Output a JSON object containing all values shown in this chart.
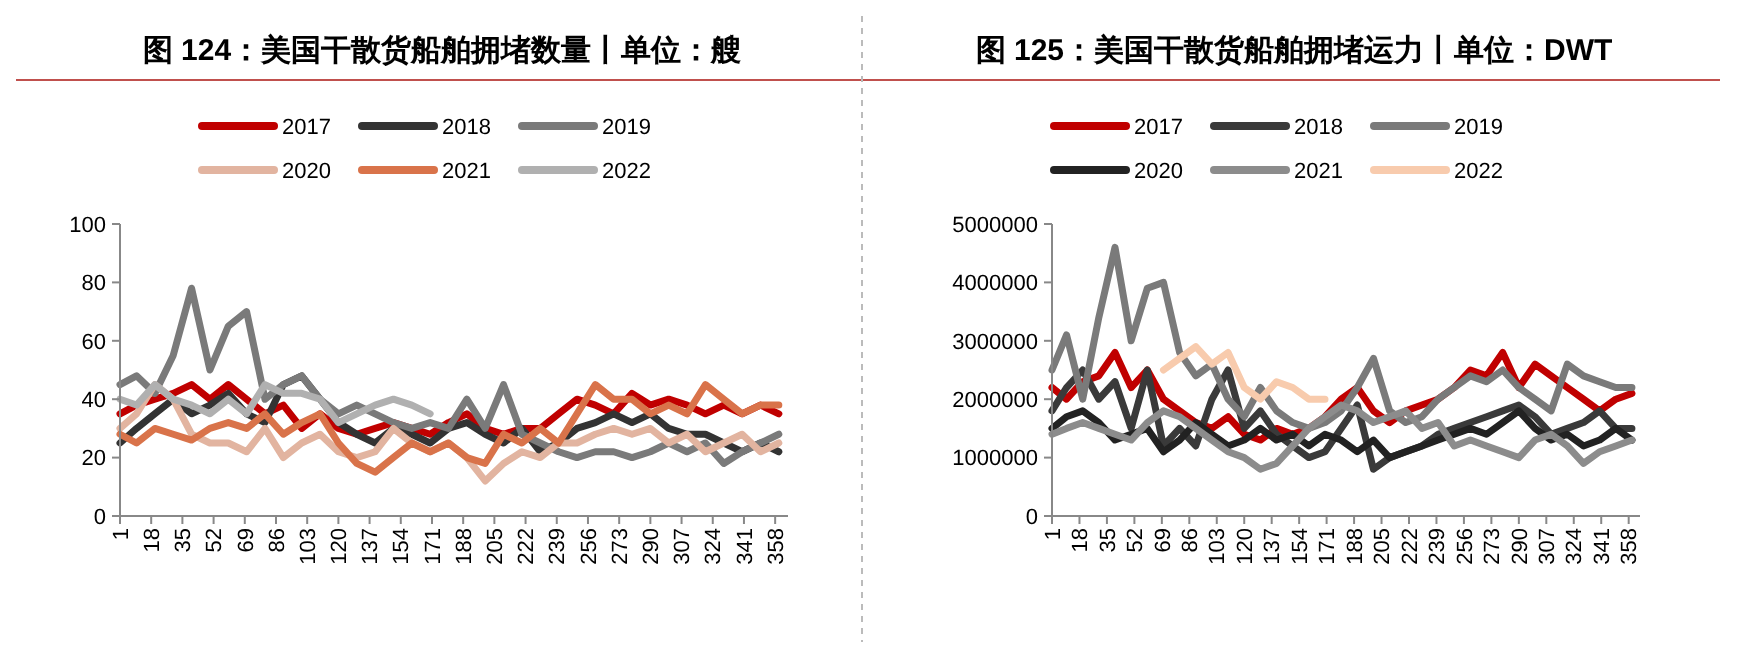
{
  "chart_data": [
    {
      "type": "line",
      "title": "图 124：美国干散货船舶拥堵数量丨单位：艘",
      "legend": "top",
      "grid": false,
      "line_style": "solid",
      "marker": "none",
      "x": [
        1,
        10,
        20,
        30,
        40,
        50,
        60,
        70,
        80,
        90,
        100,
        110,
        120,
        130,
        140,
        150,
        160,
        170,
        180,
        190,
        200,
        210,
        220,
        230,
        240,
        250,
        260,
        270,
        280,
        290,
        300,
        310,
        320,
        330,
        340,
        350,
        360
      ],
      "xlim": [
        1,
        365
      ],
      "xticks": [
        1,
        18,
        35,
        52,
        69,
        86,
        103,
        120,
        137,
        154,
        171,
        188,
        205,
        222,
        239,
        256,
        273,
        290,
        307,
        324,
        341,
        358
      ],
      "ylim": [
        0,
        100
      ],
      "yticks": [
        0,
        20,
        40,
        60,
        80,
        100
      ],
      "series": [
        {
          "name": "2017",
          "color": "#c00000",
          "values": [
            35,
            38,
            40,
            42,
            45,
            40,
            45,
            40,
            35,
            38,
            30,
            35,
            30,
            28,
            30,
            32,
            30,
            28,
            32,
            35,
            30,
            28,
            30,
            30,
            35,
            40,
            38,
            35,
            42,
            38,
            40,
            38,
            35,
            38,
            35,
            38,
            35
          ]
        },
        {
          "name": "2018",
          "color": "#333333",
          "values": [
            25,
            30,
            35,
            40,
            35,
            38,
            42,
            35,
            32,
            45,
            48,
            40,
            32,
            28,
            25,
            30,
            28,
            25,
            30,
            32,
            28,
            25,
            30,
            22,
            25,
            30,
            32,
            35,
            32,
            35,
            30,
            28,
            28,
            25,
            22,
            25,
            22
          ]
        },
        {
          "name": "2019",
          "color": "#7a7a7a",
          "values": [
            45,
            48,
            42,
            55,
            78,
            50,
            65,
            70,
            40,
            45,
            48,
            40,
            35,
            38,
            35,
            32,
            30,
            32,
            30,
            40,
            30,
            45,
            28,
            25,
            22,
            20,
            22,
            22,
            20,
            22,
            25,
            22,
            25,
            18,
            22,
            25,
            28
          ]
        },
        {
          "name": "2020",
          "color": "#e2b4a0",
          "values": [
            30,
            35,
            45,
            40,
            28,
            25,
            25,
            22,
            30,
            20,
            25,
            28,
            22,
            20,
            22,
            30,
            25,
            22,
            25,
            20,
            12,
            18,
            22,
            20,
            25,
            25,
            28,
            30,
            28,
            30,
            25,
            28,
            22,
            25,
            28,
            22,
            25
          ]
        },
        {
          "name": "2021",
          "color": "#d9734a",
          "values": [
            28,
            25,
            30,
            28,
            26,
            30,
            32,
            30,
            35,
            28,
            32,
            35,
            25,
            18,
            15,
            20,
            25,
            22,
            25,
            20,
            18,
            28,
            25,
            30,
            25,
            35,
            45,
            40,
            40,
            35,
            38,
            35,
            45,
            40,
            35,
            38,
            38
          ]
        },
        {
          "name": "2022",
          "color": "#b0b0b0",
          "values": [
            40,
            38,
            45,
            40,
            38,
            35,
            40,
            35,
            45,
            42,
            42,
            40,
            32,
            35,
            38,
            40,
            38,
            35,
            null,
            null,
            null,
            null,
            null,
            null,
            null,
            null,
            null,
            null,
            null,
            null,
            null,
            null,
            null,
            null,
            null,
            null,
            null
          ]
        }
      ]
    },
    {
      "type": "line",
      "title": "图 125：美国干散货船舶拥堵运力丨单位：DWT",
      "legend": "top",
      "grid": false,
      "line_style": "solid",
      "marker": "none",
      "x": [
        1,
        10,
        20,
        30,
        40,
        50,
        60,
        70,
        80,
        90,
        100,
        110,
        120,
        130,
        140,
        150,
        160,
        170,
        180,
        190,
        200,
        210,
        220,
        230,
        240,
        250,
        260,
        270,
        280,
        290,
        300,
        310,
        320,
        330,
        340,
        350,
        360
      ],
      "xlim": [
        1,
        365
      ],
      "xticks": [
        1,
        18,
        35,
        52,
        69,
        86,
        103,
        120,
        137,
        154,
        171,
        188,
        205,
        222,
        239,
        256,
        273,
        290,
        307,
        324,
        341,
        358
      ],
      "ylim": [
        0,
        5000000
      ],
      "yticks": [
        0,
        1000000,
        2000000,
        3000000,
        4000000,
        5000000
      ],
      "series": [
        {
          "name": "2017",
          "color": "#c00000",
          "values": [
            2200000,
            2000000,
            2300000,
            2400000,
            2800000,
            2200000,
            2500000,
            2000000,
            1800000,
            1600000,
            1500000,
            1700000,
            1400000,
            1300000,
            1500000,
            1400000,
            1500000,
            1700000,
            2000000,
            2200000,
            1800000,
            1600000,
            1800000,
            1900000,
            2000000,
            2200000,
            2500000,
            2400000,
            2800000,
            2200000,
            2600000,
            2400000,
            2200000,
            2000000,
            1800000,
            2000000,
            2100000
          ]
        },
        {
          "name": "2018",
          "color": "#3a3a3a",
          "values": [
            1800000,
            2200000,
            2500000,
            2000000,
            2300000,
            1500000,
            2500000,
            1200000,
            1500000,
            1200000,
            2000000,
            2500000,
            1500000,
            1800000,
            1400000,
            1200000,
            1000000,
            1100000,
            1500000,
            1900000,
            800000,
            1000000,
            1100000,
            1200000,
            1400000,
            1500000,
            1600000,
            1700000,
            1800000,
            1900000,
            1700000,
            1400000,
            1500000,
            1600000,
            1800000,
            1500000,
            1500000
          ]
        },
        {
          "name": "2019",
          "color": "#7a7a7a",
          "values": [
            2500000,
            3100000,
            2000000,
            3400000,
            4600000,
            3000000,
            3900000,
            4000000,
            2800000,
            2400000,
            2600000,
            2000000,
            1700000,
            2200000,
            1800000,
            1600000,
            1500000,
            1600000,
            1800000,
            2200000,
            2700000,
            1800000,
            1600000,
            1700000,
            2000000,
            2200000,
            2400000,
            2300000,
            2500000,
            2200000,
            2000000,
            1800000,
            2600000,
            2400000,
            2300000,
            2200000,
            2200000
          ]
        },
        {
          "name": "2020",
          "color": "#222222",
          "values": [
            1500000,
            1700000,
            1800000,
            1600000,
            1300000,
            1400000,
            1500000,
            1100000,
            1300000,
            1600000,
            1400000,
            1200000,
            1300000,
            1500000,
            1300000,
            1400000,
            1200000,
            1400000,
            1300000,
            1100000,
            1300000,
            1000000,
            1100000,
            1200000,
            1300000,
            1400000,
            1500000,
            1400000,
            1600000,
            1800000,
            1500000,
            1300000,
            1400000,
            1200000,
            1300000,
            1500000,
            1300000
          ]
        },
        {
          "name": "2021",
          "color": "#8c8c8c",
          "values": [
            1400000,
            1500000,
            1600000,
            1500000,
            1400000,
            1300000,
            1600000,
            1800000,
            1700000,
            1500000,
            1300000,
            1100000,
            1000000,
            800000,
            900000,
            1200000,
            1500000,
            1700000,
            1900000,
            1800000,
            1600000,
            1700000,
            1800000,
            1500000,
            1600000,
            1200000,
            1300000,
            1200000,
            1100000,
            1000000,
            1300000,
            1400000,
            1200000,
            900000,
            1100000,
            1200000,
            1300000
          ]
        },
        {
          "name": "2022",
          "color": "#f8cbad",
          "values": [
            null,
            null,
            null,
            null,
            null,
            null,
            null,
            2500000,
            2700000,
            2900000,
            2600000,
            2800000,
            2200000,
            2000000,
            2300000,
            2200000,
            2000000,
            2000000,
            null,
            null,
            null,
            null,
            null,
            null,
            null,
            null,
            null,
            null,
            null,
            null,
            null,
            null,
            null,
            null,
            null,
            null,
            null
          ]
        }
      ]
    }
  ]
}
